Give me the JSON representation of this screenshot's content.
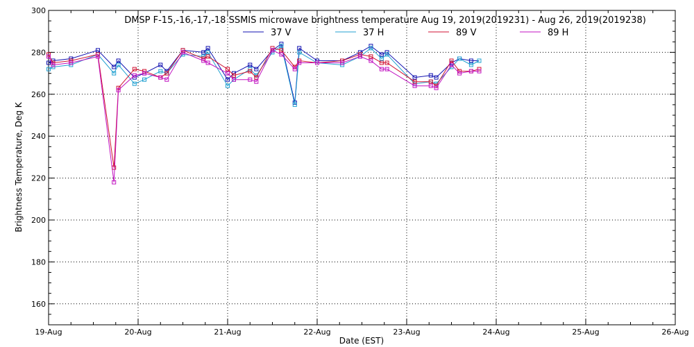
{
  "chart_data": {
    "type": "line",
    "title": "DMSP F-15,-16,-17,-18 SSMIS microwave brightness temperature Aug 19, 2019(2019231) - Aug 26, 2019(2019238)",
    "xlabel": "Date (EST)",
    "ylabel": "Brightness Temperature, Deg K",
    "xlim": [
      0,
      7
    ],
    "ylim": [
      150,
      300
    ],
    "grid": true,
    "legend_position": "top-center",
    "x_ticks": [
      {
        "value": 0,
        "label": "19-Aug"
      },
      {
        "value": 1,
        "label": "20-Aug"
      },
      {
        "value": 2,
        "label": "21-Aug"
      },
      {
        "value": 3,
        "label": "22-Aug"
      },
      {
        "value": 4,
        "label": "23-Aug"
      },
      {
        "value": 5,
        "label": "24-Aug"
      },
      {
        "value": 6,
        "label": "25-Aug"
      },
      {
        "value": 7,
        "label": "26-Aug"
      }
    ],
    "y_ticks": [
      160,
      180,
      200,
      220,
      240,
      260,
      280,
      300
    ],
    "series": [
      {
        "name": "37 V",
        "color": "#1010b0",
        "x": [
          0.0,
          0.05,
          0.25,
          0.55,
          0.73,
          0.78,
          0.96,
          1.07,
          1.25,
          1.32,
          1.5,
          1.73,
          1.78,
          2.0,
          2.07,
          2.25,
          2.32,
          2.5,
          2.6,
          2.75,
          2.8,
          3.0,
          3.28,
          3.48,
          3.6,
          3.72,
          3.78,
          4.09,
          4.27,
          4.33,
          4.5,
          4.59,
          4.72,
          4.81
        ],
        "values": [
          275,
          276,
          277,
          281,
          273,
          276,
          268,
          270,
          274,
          271,
          281,
          280,
          282,
          267,
          270,
          274,
          272,
          281,
          284,
          256,
          282,
          276,
          276,
          280,
          283,
          279,
          280,
          268,
          269,
          268,
          275,
          277,
          276,
          276
        ]
      },
      {
        "name": "37 H",
        "color": "#20a0d0",
        "x": [
          0.0,
          0.05,
          0.25,
          0.55,
          0.73,
          0.78,
          0.96,
          1.07,
          1.25,
          1.32,
          1.5,
          1.73,
          1.78,
          2.0,
          2.07,
          2.25,
          2.32,
          2.5,
          2.6,
          2.75,
          2.8,
          3.0,
          3.28,
          3.48,
          3.6,
          3.72,
          3.78,
          4.09,
          4.27,
          4.33,
          4.5,
          4.59,
          4.72,
          4.81
        ],
        "values": [
          272,
          273,
          274,
          279,
          270,
          274,
          265,
          267,
          271,
          270,
          279,
          278,
          280,
          264,
          267,
          272,
          269,
          280,
          283,
          255,
          280,
          275,
          274,
          278,
          282,
          277,
          279,
          265,
          266,
          265,
          273,
          277,
          274,
          276
        ]
      },
      {
        "name": "89 V",
        "color": "#d01030",
        "x": [
          0.0,
          0.05,
          0.25,
          0.55,
          0.73,
          0.78,
          0.96,
          1.07,
          1.25,
          1.32,
          1.5,
          1.73,
          1.78,
          2.0,
          2.07,
          2.25,
          2.32,
          2.5,
          2.6,
          2.75,
          2.8,
          3.0,
          3.28,
          3.48,
          3.6,
          3.72,
          3.78,
          4.09,
          4.27,
          4.33,
          4.5,
          4.59,
          4.72,
          4.81
        ],
        "values": [
          279,
          275,
          276,
          279,
          225,
          263,
          272,
          271,
          268,
          270,
          281,
          277,
          278,
          272,
          269,
          271,
          268,
          282,
          281,
          273,
          276,
          275,
          276,
          279,
          278,
          275,
          275,
          266,
          266,
          264,
          276,
          271,
          271,
          272
        ]
      },
      {
        "name": "89 H",
        "color": "#c010c0",
        "x": [
          0.0,
          0.05,
          0.25,
          0.55,
          0.73,
          0.78,
          0.96,
          1.07,
          1.25,
          1.32,
          1.5,
          1.73,
          1.78,
          2.0,
          2.07,
          2.25,
          2.32,
          2.5,
          2.6,
          2.75,
          2.8,
          3.0,
          3.28,
          3.48,
          3.6,
          3.72,
          3.78,
          4.09,
          4.27,
          4.33,
          4.5,
          4.59,
          4.72,
          4.81
        ],
        "values": [
          278,
          274,
          275,
          278,
          218,
          262,
          269,
          270,
          268,
          267,
          280,
          276,
          275,
          270,
          267,
          267,
          266,
          281,
          279,
          272,
          275,
          275,
          275,
          278,
          276,
          272,
          272,
          264,
          264,
          263,
          274,
          270,
          271,
          271
        ]
      }
    ]
  }
}
